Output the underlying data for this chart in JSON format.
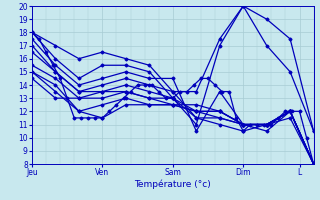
{
  "title": "",
  "xlabel": "Température (°c)",
  "ylabel": "",
  "xlim": [
    0,
    120
  ],
  "ylim": [
    8,
    20
  ],
  "yticks": [
    8,
    9,
    10,
    11,
    12,
    13,
    14,
    15,
    16,
    17,
    18,
    19,
    20
  ],
  "xtick_positions": [
    0,
    30,
    60,
    90,
    114
  ],
  "xtick_labels": [
    "Jeu",
    "Ven",
    "Sam",
    "Dim",
    "L"
  ],
  "background_color": "#c8e8ee",
  "grid_color": "#a8ccd4",
  "line_color": "#0000bb",
  "marker": "D",
  "markersize": 1.5,
  "linewidth": 0.9,
  "series": [
    [
      0,
      18.0,
      10,
      17.0,
      20,
      16.0,
      30,
      16.5,
      40,
      16.0,
      50,
      15.5,
      60,
      13.5,
      70,
      13.5,
      80,
      17.5,
      90,
      20.0,
      100,
      19.0,
      110,
      17.5,
      120,
      10.5
    ],
    [
      0,
      18.0,
      10,
      16.0,
      20,
      14.5,
      30,
      15.5,
      40,
      15.5,
      50,
      15.0,
      60,
      13.0,
      70,
      11.0,
      80,
      17.0,
      90,
      20.0,
      100,
      17.0,
      110,
      15.0,
      120,
      10.5
    ],
    [
      0,
      17.5,
      10,
      15.5,
      20,
      14.0,
      30,
      14.5,
      40,
      15.0,
      50,
      14.5,
      60,
      14.5,
      70,
      10.5,
      80,
      13.5,
      90,
      11.0,
      100,
      10.5,
      110,
      12.0,
      120,
      8.0
    ],
    [
      0,
      17.0,
      10,
      15.0,
      20,
      13.5,
      30,
      14.0,
      40,
      14.5,
      50,
      14.0,
      60,
      13.5,
      70,
      11.5,
      80,
      11.0,
      90,
      10.5,
      100,
      11.0,
      110,
      12.0,
      120,
      8.0
    ],
    [
      0,
      16.5,
      10,
      15.0,
      20,
      13.5,
      30,
      13.5,
      40,
      14.0,
      50,
      13.5,
      60,
      13.0,
      70,
      12.0,
      80,
      11.5,
      90,
      11.0,
      100,
      11.0,
      110,
      12.0,
      120,
      8.0
    ],
    [
      0,
      15.5,
      10,
      14.5,
      20,
      13.0,
      30,
      13.5,
      40,
      13.5,
      50,
      13.0,
      60,
      12.5,
      70,
      12.5,
      80,
      12.0,
      90,
      11.0,
      100,
      11.0,
      110,
      12.0,
      120,
      8.0
    ],
    [
      0,
      15.0,
      10,
      14.0,
      20,
      12.0,
      30,
      12.5,
      40,
      13.0,
      50,
      12.5,
      60,
      12.5,
      70,
      12.0,
      80,
      12.0,
      90,
      11.0,
      100,
      11.0,
      110,
      12.0,
      120,
      8.0
    ],
    [
      0,
      15.0,
      10,
      13.5,
      20,
      12.0,
      30,
      11.5,
      40,
      12.5,
      50,
      12.5,
      60,
      12.5,
      70,
      12.0,
      80,
      12.0,
      90,
      11.0,
      100,
      11.0,
      110,
      11.5,
      120,
      8.0
    ],
    [
      0,
      14.5,
      10,
      13.0,
      20,
      13.0,
      30,
      13.0,
      40,
      13.5,
      50,
      13.0,
      60,
      13.0,
      70,
      11.5,
      80,
      11.5,
      90,
      11.0,
      100,
      11.0,
      110,
      12.0,
      120,
      8.0
    ],
    [
      0,
      18.0,
      3,
      17.5,
      6,
      16.5,
      9,
      15.5,
      12,
      14.5,
      15,
      13.0,
      18,
      11.5,
      21,
      11.5,
      24,
      11.5,
      27,
      11.5,
      30,
      11.5,
      33,
      12.0,
      36,
      12.5,
      39,
      13.0,
      42,
      13.5,
      45,
      14.0,
      48,
      14.0,
      51,
      14.0,
      54,
      13.5,
      57,
      13.0,
      60,
      13.0,
      63,
      13.5,
      66,
      13.5,
      69,
      14.0,
      72,
      14.5,
      75,
      14.5,
      78,
      14.0,
      81,
      13.5,
      84,
      13.5,
      87,
      11.5,
      90,
      10.5,
      93,
      11.0,
      96,
      11.0,
      99,
      11.0,
      102,
      11.0,
      105,
      11.5,
      108,
      12.0,
      111,
      12.0,
      114,
      12.0,
      117,
      10.0,
      120,
      8.0
    ]
  ]
}
